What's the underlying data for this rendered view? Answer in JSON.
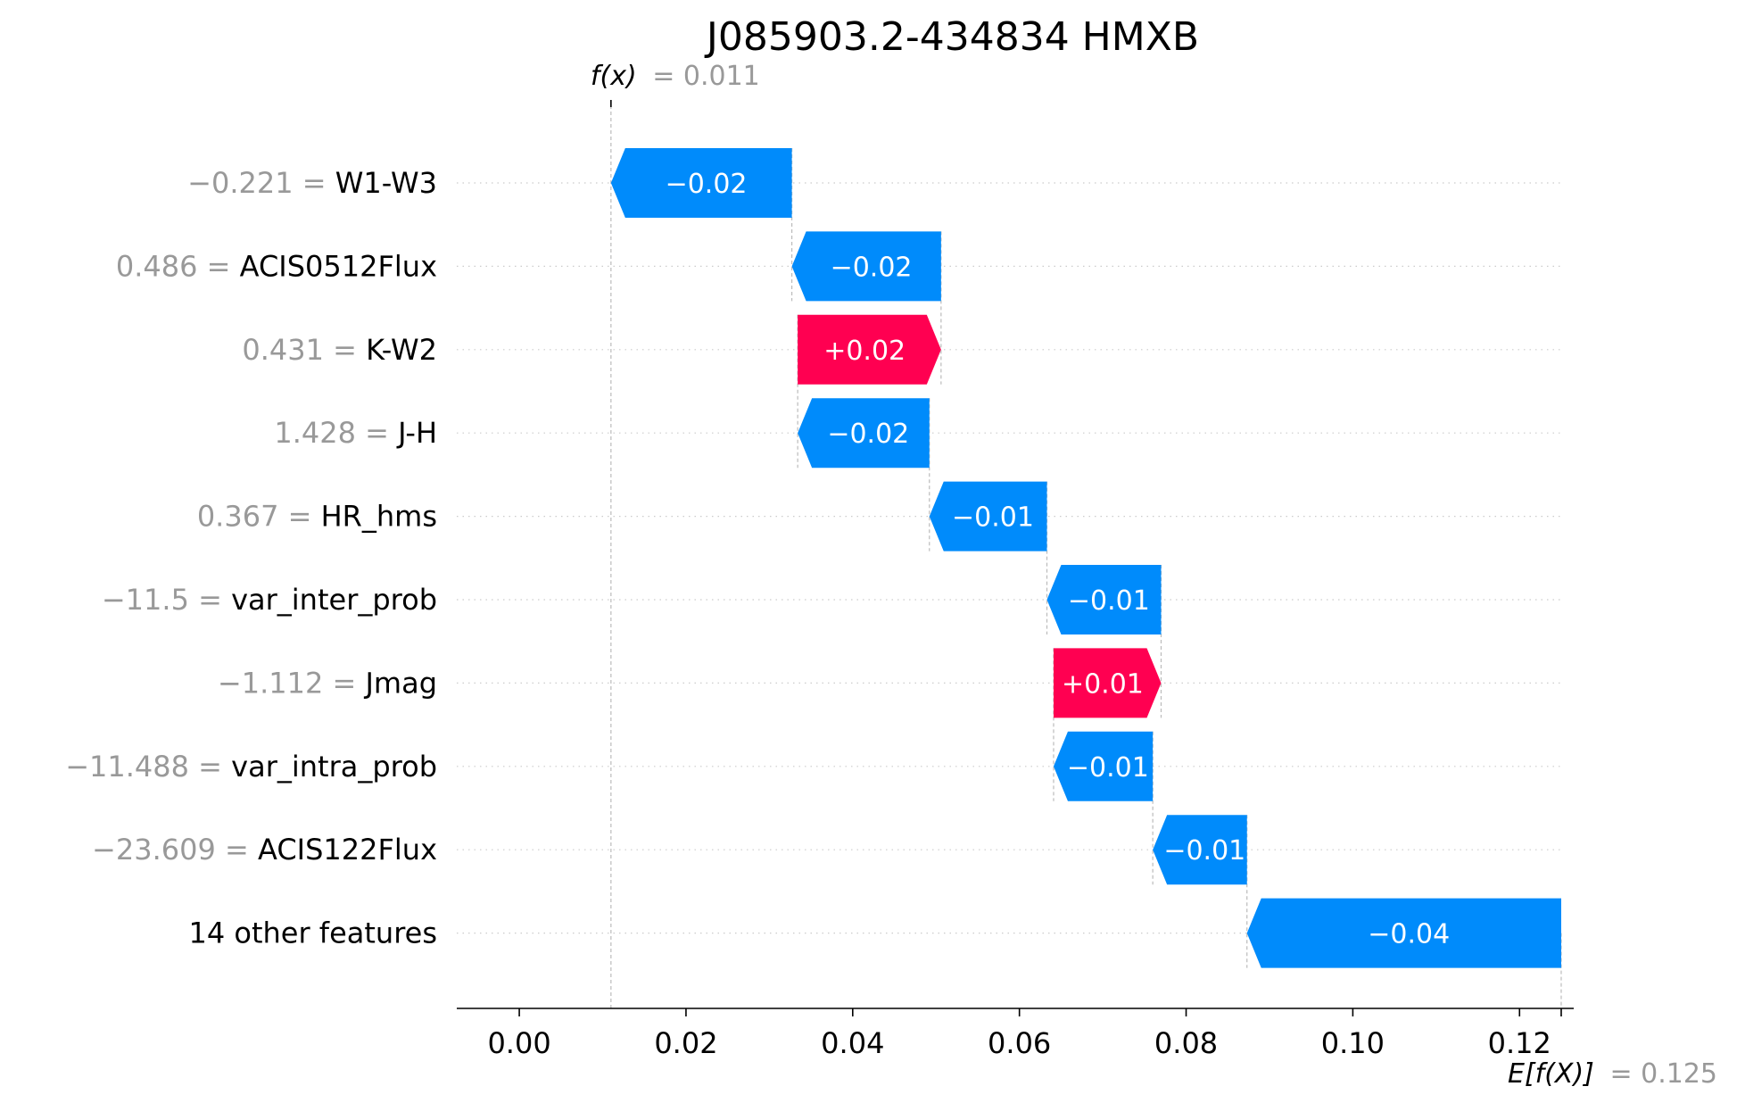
{
  "chart_data": {
    "type": "bar",
    "title": "J085903.2-434834 HMXB",
    "fx_label": "f(x)",
    "fx_value_text": "= 0.011",
    "efx_label": "E[f(X)]",
    "efx_value_text": "= 0.125",
    "base_value": 0.125,
    "final_value": 0.011,
    "xlim": [
      -0.0075,
      0.1265
    ],
    "xticks": [
      "0.00",
      "0.02",
      "0.04",
      "0.06",
      "0.08",
      "0.10",
      "0.12"
    ],
    "xtick_values": [
      0,
      0.02,
      0.04,
      0.06,
      0.08,
      0.1,
      0.12
    ],
    "features": [
      {
        "value": "−0.221",
        "name": "W1-W3",
        "label": "−0.02",
        "start": 0.0327,
        "end": 0.011,
        "sign": "neg"
      },
      {
        "value": "0.486",
        "name": "ACIS0512Flux",
        "label": "−0.02",
        "start": 0.0506,
        "end": 0.0327,
        "sign": "neg"
      },
      {
        "value": "0.431",
        "name": "K-W2",
        "label": "+0.02",
        "start": 0.0334,
        "end": 0.0506,
        "sign": "pos"
      },
      {
        "value": "1.428",
        "name": "J-H",
        "label": "−0.02",
        "start": 0.0492,
        "end": 0.0334,
        "sign": "neg"
      },
      {
        "value": "0.367",
        "name": "HR_hms",
        "label": "−0.01",
        "start": 0.0633,
        "end": 0.0492,
        "sign": "neg"
      },
      {
        "value": "−11.5",
        "name": "var_inter_prob",
        "label": "−0.01",
        "start": 0.077,
        "end": 0.0633,
        "sign": "neg"
      },
      {
        "value": "−1.112",
        "name": "Jmag",
        "label": "+0.01",
        "start": 0.0641,
        "end": 0.077,
        "sign": "pos"
      },
      {
        "value": "−11.488",
        "name": "var_intra_prob",
        "label": "−0.01",
        "start": 0.076,
        "end": 0.0641,
        "sign": "neg"
      },
      {
        "value": "−23.609",
        "name": "ACIS122Flux",
        "label": "−0.01",
        "start": 0.0873,
        "end": 0.076,
        "sign": "neg"
      },
      {
        "value": "",
        "name": "14 other features",
        "label": "−0.04",
        "start": 0.125,
        "end": 0.0873,
        "sign": "neg"
      }
    ],
    "colors": {
      "positive": "#ff0051",
      "negative": "#008bfb",
      "muted": "#999999",
      "text": "#000000"
    },
    "grid": "dotted horizontal"
  }
}
